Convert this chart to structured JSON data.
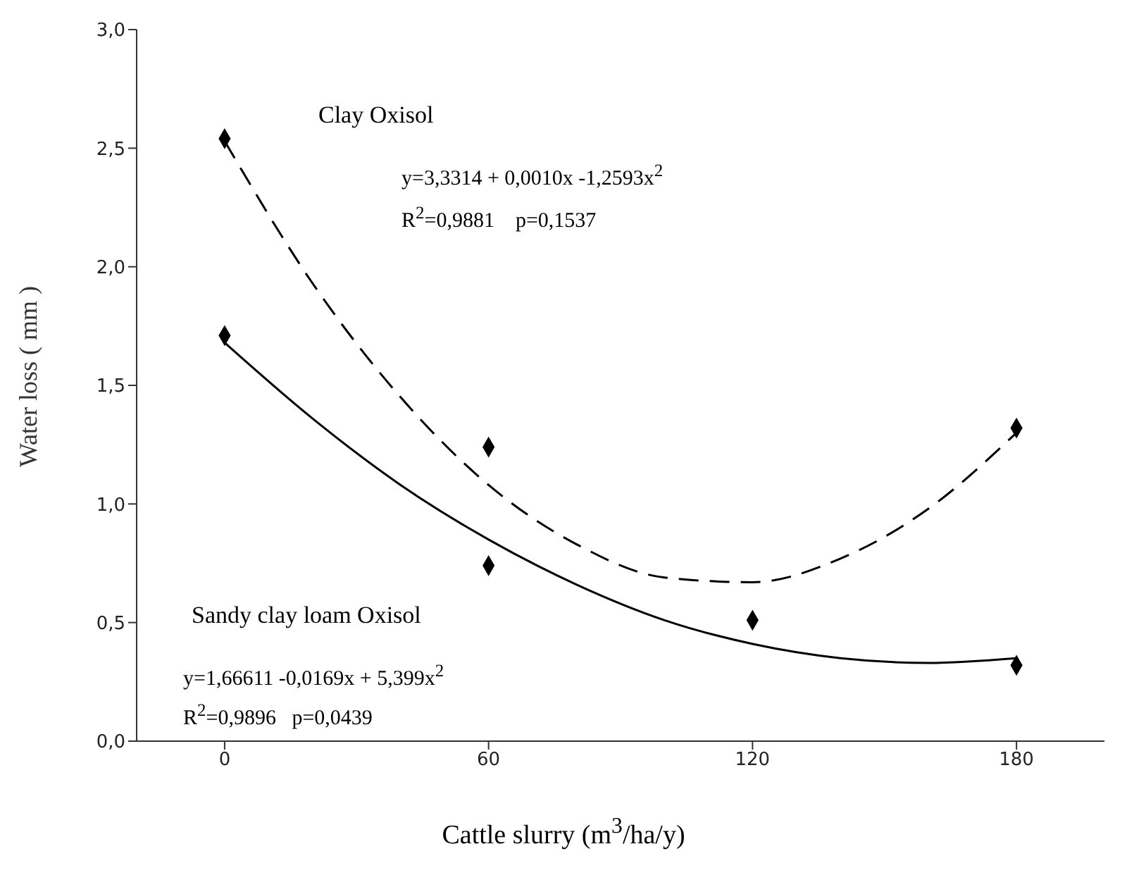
{
  "chart_data": {
    "type": "scatter",
    "xlabel": "Cattle slurry (m$^{3}$/ha/y)",
    "ylabel": "Water loss ( mm )",
    "xlim": [
      -20,
      200
    ],
    "xticks": [
      0,
      60,
      120,
      180
    ],
    "ylim": [
      0,
      3
    ],
    "yticks": [
      {
        "value": 0,
        "label": "0,0"
      },
      {
        "value": 0.5,
        "label": "0,5"
      },
      {
        "value": 1,
        "label": "1,0"
      },
      {
        "value": 1.5,
        "label": "1,5"
      },
      {
        "value": 2,
        "label": "2,0"
      },
      {
        "value": 2.5,
        "label": "2,5"
      },
      {
        "value": 3,
        "label": "3,0"
      }
    ],
    "grid": false,
    "marker": "diamond",
    "series": [
      {
        "color": "#000000",
        "x": [
          0,
          60,
          120,
          180
        ],
        "values": [
          2.54,
          1.24,
          null,
          1.32
        ]
      },
      {
        "type": "line",
        "color": "#000000",
        "line_style": "dashed",
        "marker": "none",
        "x": [
          0,
          20,
          40,
          60,
          80,
          100,
          120,
          140,
          160,
          180
        ],
        "values": [
          2.53,
          1.93,
          1.45,
          1.08,
          0.83,
          0.69,
          0.67,
          0.77,
          0.98,
          1.3
        ]
      },
      {
        "color": "#000000",
        "x": [
          0,
          60,
          120,
          180
        ],
        "values": [
          1.71,
          0.74,
          0.51,
          0.32
        ]
      },
      {
        "type": "line",
        "color": "#000000",
        "line_style": "solid",
        "marker": "none",
        "x": [
          0,
          20,
          40,
          60,
          80,
          100,
          120,
          140,
          160,
          180
        ],
        "values": [
          1.68,
          1.36,
          1.08,
          0.85,
          0.66,
          0.51,
          0.41,
          0.35,
          0.33,
          0.35
        ]
      }
    ],
    "annotations": [
      "Clay Oxisol",
      "y=3,3314 + 0,0010x -1,2593x$^{2}$",
      "R$^{2}$=0,9881    p=0,1537",
      "Sandy clay loam Oxisol",
      "y=1,66611 -0,0169x + 5,399x$^{2}$",
      "R$^{2}$=0,9896   p=0,0439"
    ]
  }
}
